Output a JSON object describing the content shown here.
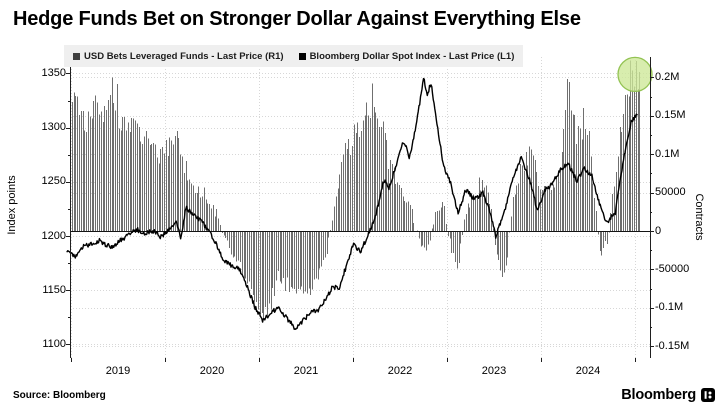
{
  "title": "Hedge Funds Bet on Stronger Dollar Against Everything Else",
  "source": "Source: Bloomberg",
  "brand": "Bloomberg",
  "legend": {
    "background": "#efefef",
    "items": [
      {
        "label": "USD Bets Leveraged Funds - Last Price (R1)",
        "color": "#3f3f3f"
      },
      {
        "label": "Bloomberg Dollar Spot Index - Last Price (L1)",
        "color": "#000000"
      }
    ]
  },
  "colors": {
    "bars": "#6f6f6f",
    "line": "#000000",
    "grid": "#d7d7d7",
    "axis": "#1f1f1f",
    "zero_line": "#141414"
  },
  "annotations": {
    "highlight_circle": {
      "t": 2025.0,
      "value": 200000,
      "radius": 17,
      "fill": "#cde897",
      "fill_opacity": 0.78,
      "stroke": "#93c353"
    }
  },
  "chart_data": {
    "type": "mixed",
    "x_range": [
      2018.95,
      2025.05
    ],
    "grid": true,
    "legend_position": "top",
    "x_axis": {
      "tick_years": [
        2019,
        2020,
        2021,
        2022,
        2023,
        2024
      ],
      "tick_labels": [
        "2019",
        "2020",
        "2021",
        "2022",
        "2023",
        "2024"
      ]
    },
    "left_axis": {
      "title": "Index points",
      "tick_values": [
        1350,
        1300,
        1250,
        1200,
        1150,
        1100
      ],
      "tick_labels": [
        "1350",
        "1300",
        "1250",
        "1200",
        "1150",
        "1100"
      ],
      "minor_ticks": [
        1325,
        1275,
        1225,
        1175,
        1125
      ],
      "range_px_map": "1200 at baseline area"
    },
    "right_axis": {
      "title": "Contracts",
      "tick_values": [
        200000,
        150000,
        100000,
        50000,
        0,
        -50000,
        -100000,
        -150000
      ],
      "tick_labels": [
        "0.2M",
        "0.15M",
        "0.1M",
        "50000",
        "0",
        "-50000",
        "-0.1M",
        "-0.15M"
      ],
      "minor_ticks": [
        175000,
        125000,
        75000,
        25000,
        -25000,
        -75000,
        -125000
      ]
    },
    "series": [
      {
        "name": "USD Bets Leveraged Funds - Last Price (R1)",
        "type": "bar",
        "axis": "right",
        "unit": "contracts",
        "color": "#6f6f6f",
        "points": [
          [
            2018.955,
            192000
          ],
          [
            2019.04,
            168000
          ],
          [
            2019.12,
            148000
          ],
          [
            2019.2,
            152000
          ],
          [
            2019.3,
            158000
          ],
          [
            2019.38,
            168000
          ],
          [
            2019.46,
            182000
          ],
          [
            2019.54,
            150000
          ],
          [
            2019.62,
            142000
          ],
          [
            2019.7,
            130000
          ],
          [
            2019.79,
            118000
          ],
          [
            2019.88,
            108000
          ],
          [
            2019.96,
            100000
          ],
          [
            2020.04,
            112000
          ],
          [
            2020.12,
            120000
          ],
          [
            2020.2,
            85000
          ],
          [
            2020.3,
            62000
          ],
          [
            2020.38,
            52000
          ],
          [
            2020.46,
            38000
          ],
          [
            2020.54,
            22000
          ],
          [
            2020.62,
            -5000
          ],
          [
            2020.7,
            -28000
          ],
          [
            2020.79,
            -45000
          ],
          [
            2020.88,
            -68000
          ],
          [
            2020.96,
            -88000
          ],
          [
            2021.04,
            -105000
          ],
          [
            2021.12,
            -88000
          ],
          [
            2021.2,
            -62000
          ],
          [
            2021.3,
            -68000
          ],
          [
            2021.38,
            -78000
          ],
          [
            2021.46,
            -84000
          ],
          [
            2021.54,
            -76000
          ],
          [
            2021.62,
            -58000
          ],
          [
            2021.7,
            -38000
          ],
          [
            2021.79,
            25000
          ],
          [
            2021.88,
            95000
          ],
          [
            2021.96,
            118000
          ],
          [
            2022.04,
            132000
          ],
          [
            2022.12,
            158000
          ],
          [
            2022.2,
            172000
          ],
          [
            2022.3,
            138000
          ],
          [
            2022.38,
            96000
          ],
          [
            2022.46,
            66000
          ],
          [
            2022.54,
            44000
          ],
          [
            2022.62,
            28000
          ],
          [
            2022.7,
            -16000
          ],
          [
            2022.79,
            -26000
          ],
          [
            2022.88,
            22000
          ],
          [
            2022.96,
            34000
          ],
          [
            2023.04,
            -26000
          ],
          [
            2023.12,
            -46000
          ],
          [
            2023.2,
            28000
          ],
          [
            2023.29,
            52000
          ],
          [
            2023.38,
            68000
          ],
          [
            2023.46,
            36000
          ],
          [
            2023.54,
            -42000
          ],
          [
            2023.62,
            -62000
          ],
          [
            2023.7,
            42000
          ],
          [
            2023.79,
            88000
          ],
          [
            2023.88,
            104000
          ],
          [
            2023.96,
            68000
          ],
          [
            2024.04,
            46000
          ],
          [
            2024.12,
            58000
          ],
          [
            2024.2,
            82000
          ],
          [
            2024.29,
            185000
          ],
          [
            2024.38,
            128000
          ],
          [
            2024.46,
            148000
          ],
          [
            2024.54,
            88000
          ],
          [
            2024.62,
            -32000
          ],
          [
            2024.7,
            -14000
          ],
          [
            2024.79,
            75000
          ],
          [
            2024.88,
            165000
          ],
          [
            2024.96,
            195000
          ],
          [
            2025.02,
            205000
          ]
        ]
      },
      {
        "name": "Bloomberg Dollar Spot Index - Last Price (L1)",
        "type": "line",
        "axis": "left",
        "unit": "index points",
        "color": "#000000",
        "points": [
          [
            2018.955,
            1186
          ],
          [
            2019.04,
            1181
          ],
          [
            2019.12,
            1190
          ],
          [
            2019.2,
            1192
          ],
          [
            2019.3,
            1196
          ],
          [
            2019.38,
            1191
          ],
          [
            2019.46,
            1190
          ],
          [
            2019.54,
            1197
          ],
          [
            2019.62,
            1201
          ],
          [
            2019.7,
            1206
          ],
          [
            2019.79,
            1202
          ],
          [
            2019.88,
            1205
          ],
          [
            2019.96,
            1199
          ],
          [
            2020.04,
            1206
          ],
          [
            2020.12,
            1213
          ],
          [
            2020.17,
            1198
          ],
          [
            2020.22,
            1226
          ],
          [
            2020.3,
            1220
          ],
          [
            2020.38,
            1214
          ],
          [
            2020.46,
            1206
          ],
          [
            2020.54,
            1193
          ],
          [
            2020.62,
            1178
          ],
          [
            2020.7,
            1173
          ],
          [
            2020.79,
            1170
          ],
          [
            2020.88,
            1152
          ],
          [
            2020.96,
            1134
          ],
          [
            2021.04,
            1122
          ],
          [
            2021.12,
            1128
          ],
          [
            2021.2,
            1134
          ],
          [
            2021.3,
            1124
          ],
          [
            2021.38,
            1115
          ],
          [
            2021.46,
            1121
          ],
          [
            2021.54,
            1129
          ],
          [
            2021.62,
            1131
          ],
          [
            2021.7,
            1140
          ],
          [
            2021.79,
            1154
          ],
          [
            2021.85,
            1150
          ],
          [
            2021.92,
            1170
          ],
          [
            2022.0,
            1192
          ],
          [
            2022.08,
            1186
          ],
          [
            2022.16,
            1200
          ],
          [
            2022.25,
            1222
          ],
          [
            2022.33,
            1252
          ],
          [
            2022.38,
            1244
          ],
          [
            2022.46,
            1266
          ],
          [
            2022.54,
            1288
          ],
          [
            2022.6,
            1272
          ],
          [
            2022.67,
            1300
          ],
          [
            2022.75,
            1346
          ],
          [
            2022.79,
            1331
          ],
          [
            2022.83,
            1341
          ],
          [
            2022.88,
            1310
          ],
          [
            2022.96,
            1266
          ],
          [
            2023.04,
            1248
          ],
          [
            2023.12,
            1221
          ],
          [
            2023.2,
            1243
          ],
          [
            2023.29,
            1234
          ],
          [
            2023.38,
            1240
          ],
          [
            2023.46,
            1222
          ],
          [
            2023.52,
            1199
          ],
          [
            2023.62,
            1226
          ],
          [
            2023.7,
            1252
          ],
          [
            2023.79,
            1272
          ],
          [
            2023.88,
            1252
          ],
          [
            2023.96,
            1224
          ],
          [
            2024.04,
            1242
          ],
          [
            2024.12,
            1248
          ],
          [
            2024.2,
            1260
          ],
          [
            2024.29,
            1267
          ],
          [
            2024.38,
            1251
          ],
          [
            2024.46,
            1262
          ],
          [
            2024.54,
            1256
          ],
          [
            2024.62,
            1230
          ],
          [
            2024.7,
            1212
          ],
          [
            2024.79,
            1222
          ],
          [
            2024.88,
            1272
          ],
          [
            2024.96,
            1306
          ],
          [
            2025.02,
            1312
          ]
        ]
      }
    ]
  }
}
